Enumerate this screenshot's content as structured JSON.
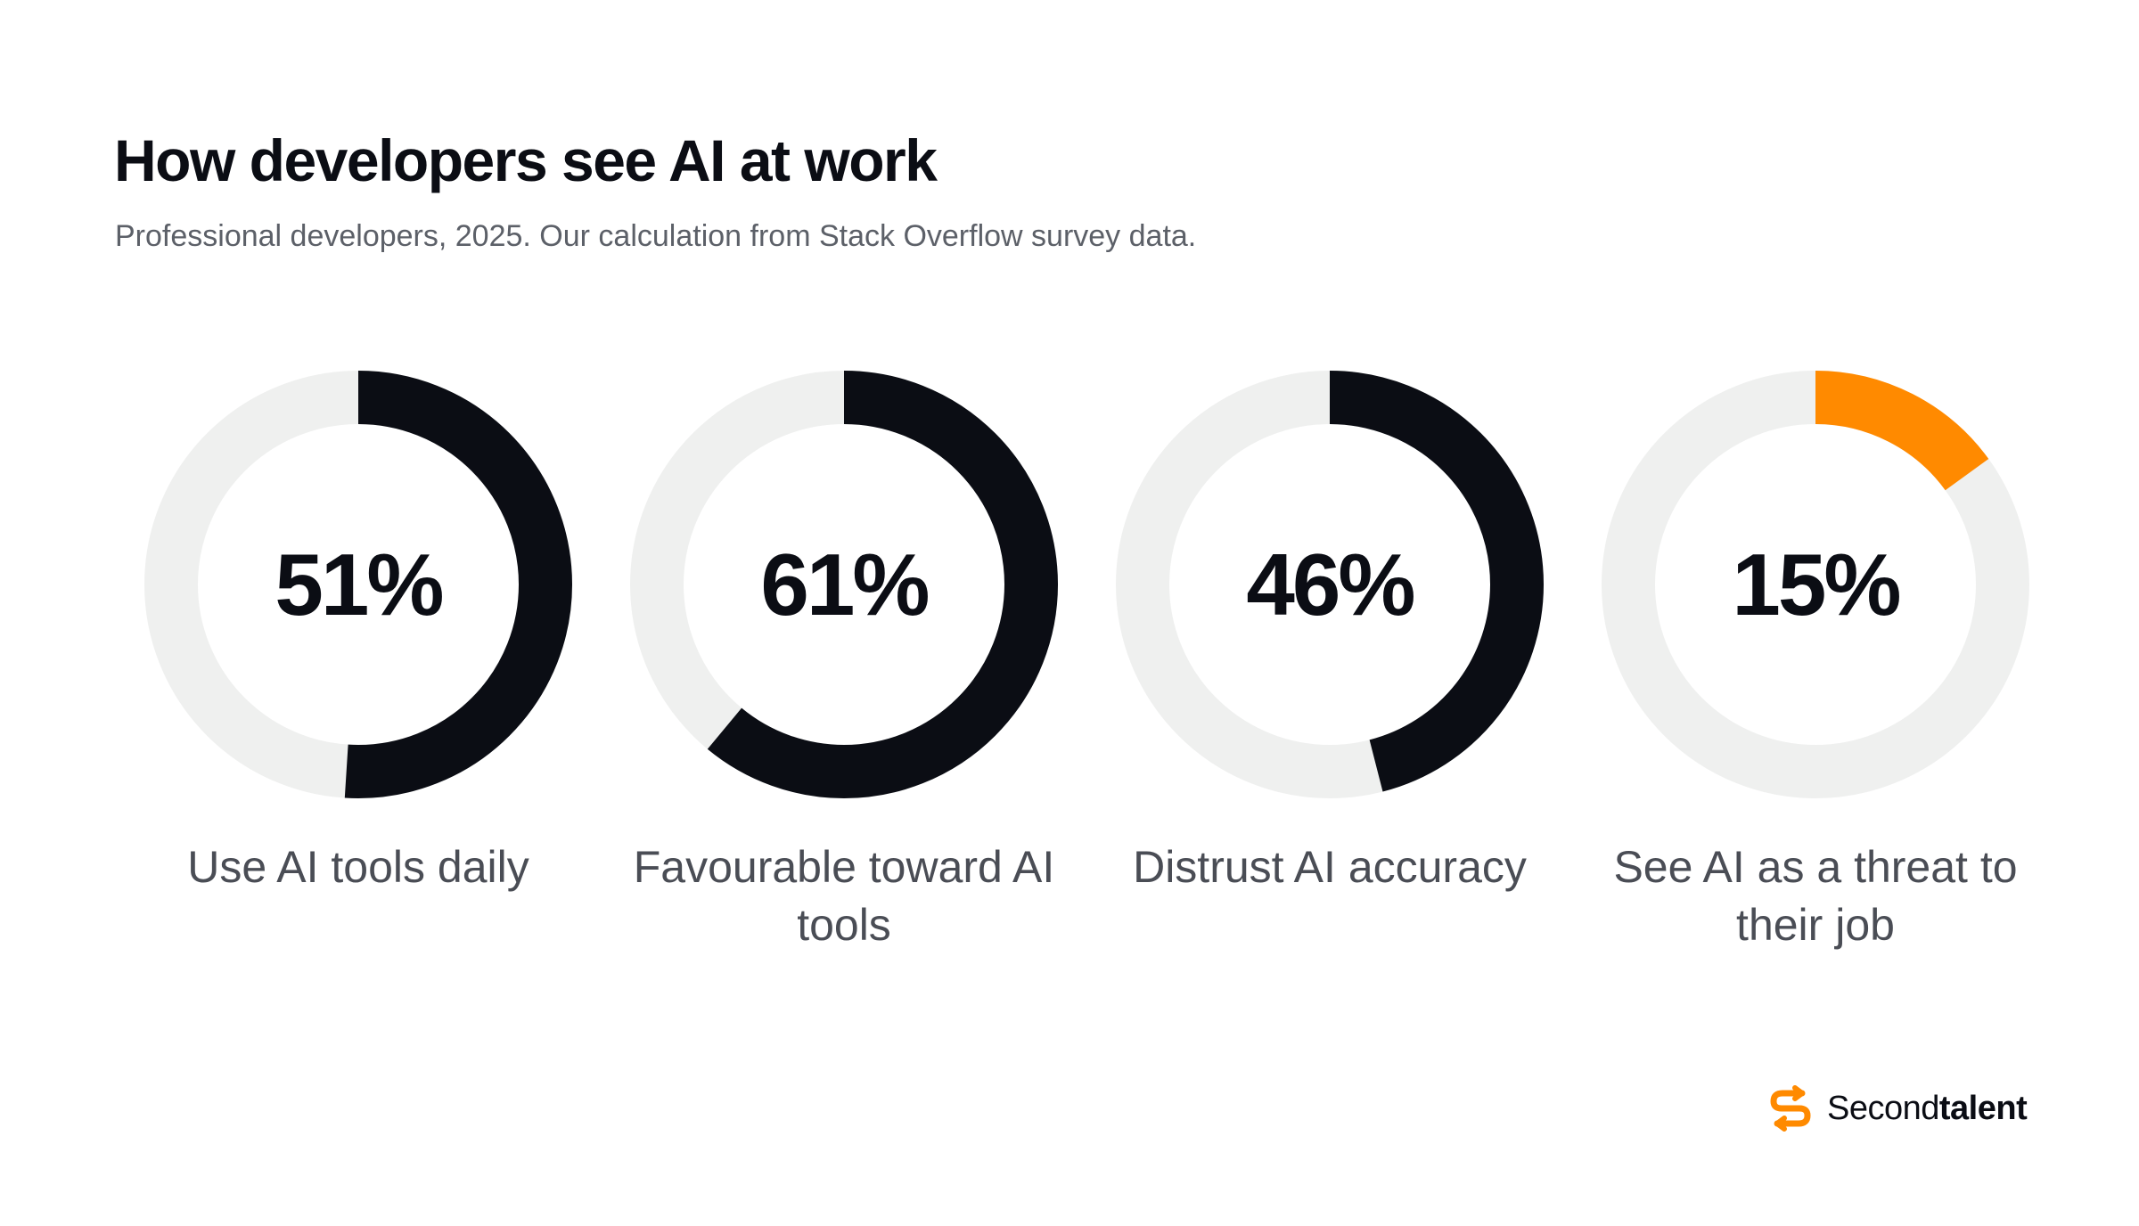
{
  "header": {
    "title": "How developers see AI at work",
    "subtitle": "Professional developers, 2025. Our calculation from Stack Overflow survey data."
  },
  "colors": {
    "track": "#eff0ef",
    "dark": "#0b0d14",
    "accent": "#ff8a00"
  },
  "chart_data": {
    "type": "pie",
    "subtype": "donut",
    "title": "How developers see AI at work",
    "subtitle": "Professional developers, 2025. Our calculation from Stack Overflow survey data.",
    "unit": "%",
    "items": [
      {
        "label": "Use AI tools daily",
        "value": 51,
        "display": "51%",
        "color": "#0b0d14"
      },
      {
        "label": "Favourable toward AI tools",
        "value": 61,
        "display": "61%",
        "color": "#0b0d14"
      },
      {
        "label": "Distrust AI accuracy",
        "value": 46,
        "display": "46%",
        "color": "#0b0d14"
      },
      {
        "label": "See AI as a threat to their job",
        "value": 15,
        "display": "15%",
        "color": "#ff8a00"
      }
    ]
  },
  "brand": {
    "logo_icon": "secondtalent-s-icon",
    "name_light": "Second",
    "name_bold": "talent"
  }
}
